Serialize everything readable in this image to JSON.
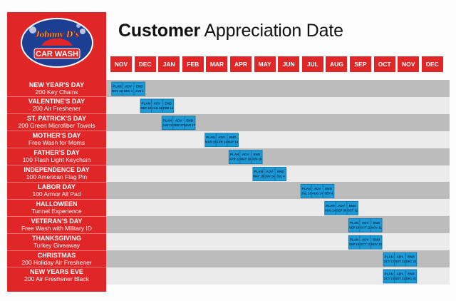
{
  "logo": {
    "brand": "Johnny D's",
    "name": "CAR WASH"
  },
  "title": {
    "bold": "Customer",
    "rest": " Appreciation Date"
  },
  "chart_data": {
    "type": "table",
    "months": [
      "NOV",
      "DEC",
      "JAN",
      "FEB",
      "MAR",
      "APR",
      "MAY",
      "JUN",
      "JUL",
      "AUG",
      "SEP",
      "OCT",
      "NOV",
      "DEC"
    ],
    "phases": [
      "PLAN",
      "ADV",
      "END"
    ],
    "rows": [
      {
        "event": "NEW YEAR'S DAY",
        "promo": "200 Key Chains",
        "start": 0.05,
        "dates": [
          "NOV 10",
          "DEC 1",
          "JAN 1"
        ]
      },
      {
        "event": "VALENTINE'S DAY",
        "promo": "200 Air Freshener",
        "start": 1.25,
        "dates": [
          "DEC 15",
          "JAN 14",
          "FEB 14"
        ]
      },
      {
        "event": "ST. PATRICK'S DAY",
        "promo": "200 Green Microfiber Towels",
        "start": 2.15,
        "dates": [
          "JAN 14",
          "FEB 17",
          "MAR 17"
        ]
      },
      {
        "event": "MOTHER'S DAY",
        "promo": "Free Wash for Moms",
        "start": 3.95,
        "dates": [
          "MAR 18",
          "APR 14",
          "MAY 14"
        ]
      },
      {
        "event": "FATHER'S DAY",
        "promo": "100 Flash Light Keychain",
        "start": 4.95,
        "dates": [
          "APR 11",
          "MAY 18",
          "JUN 18"
        ]
      },
      {
        "event": "INDEPENDENCE DAY",
        "promo": "100 American Flag Pin",
        "start": 5.95,
        "dates": [
          "MAY 18",
          "JUN 14",
          "JUL 4"
        ]
      },
      {
        "event": "LABOR DAY",
        "promo": "100 Armor All Pad",
        "start": 7.95,
        "dates": [
          "JUL 15",
          "AUG 14",
          "SEP 4"
        ]
      },
      {
        "event": "HALLOWEEN",
        "promo": "Tunnel Experience",
        "start": 8.95,
        "dates": [
          "AUG 14",
          "SEP 30",
          "OCT 31"
        ]
      },
      {
        "event": "VETERAN'S DAY",
        "promo": "Free Wash with Military ID",
        "start": 9.95,
        "dates": [
          "SEP 16",
          "OCT 11",
          "NOV 11"
        ]
      },
      {
        "event": "THANKSGIVING",
        "promo": "Turkey Giveaway",
        "start": 9.95,
        "dates": [
          "SEP 15",
          "OCT 11",
          "NOV 23"
        ]
      },
      {
        "event": "CHRISTMAS",
        "promo": "200 Holiday Air Freshener",
        "start": 11.4,
        "dates": [
          "OCT 12",
          "NOV 24",
          "DEC 24"
        ]
      },
      {
        "event": "NEW YEARS EVE",
        "promo": "200 Air Freshener Black",
        "start": 11.4,
        "dates": [
          "OCT 15",
          "NOV 24",
          "DEC 31"
        ]
      }
    ]
  },
  "colors": {
    "red": "#e02626",
    "block": "#1b9ad6",
    "block_border": "#0d6fa3",
    "row_dark": "#bcbcbc",
    "row_light": "#ebebeb"
  }
}
